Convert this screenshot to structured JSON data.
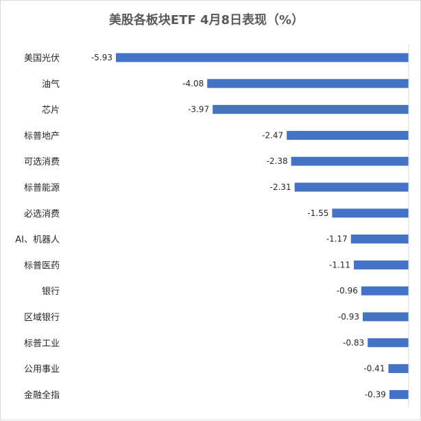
{
  "chart_data": {
    "type": "bar",
    "orientation": "horizontal",
    "title": "美股各板块ETF 4月8日表现（%）",
    "xlabel": "",
    "ylabel": "",
    "categories": [
      "美国光伏",
      "油气",
      "芯片",
      "标普地产",
      "可选消费",
      "标普能源",
      "必选消费",
      "AI、机器人",
      "标普医药",
      "银行",
      "区域银行",
      "标普工业",
      "公用事业",
      "金融全指"
    ],
    "values": [
      -5.93,
      -4.08,
      -3.97,
      -2.47,
      -2.38,
      -2.31,
      -1.55,
      -1.17,
      -1.11,
      -0.96,
      -0.93,
      -0.83,
      -0.41,
      -0.39
    ],
    "value_labels": [
      "-5.93",
      "-4.08",
      "-3.97",
      "-2.47",
      "-2.38",
      "-2.31",
      "-1.55",
      "-1.17",
      "-1.11",
      "-0.96",
      "-0.93",
      "-0.83",
      "-0.41",
      "-0.39"
    ],
    "xlim": [
      -7.0,
      0
    ],
    "grid": false,
    "legend": "none",
    "bar_color": "#4472c4"
  }
}
